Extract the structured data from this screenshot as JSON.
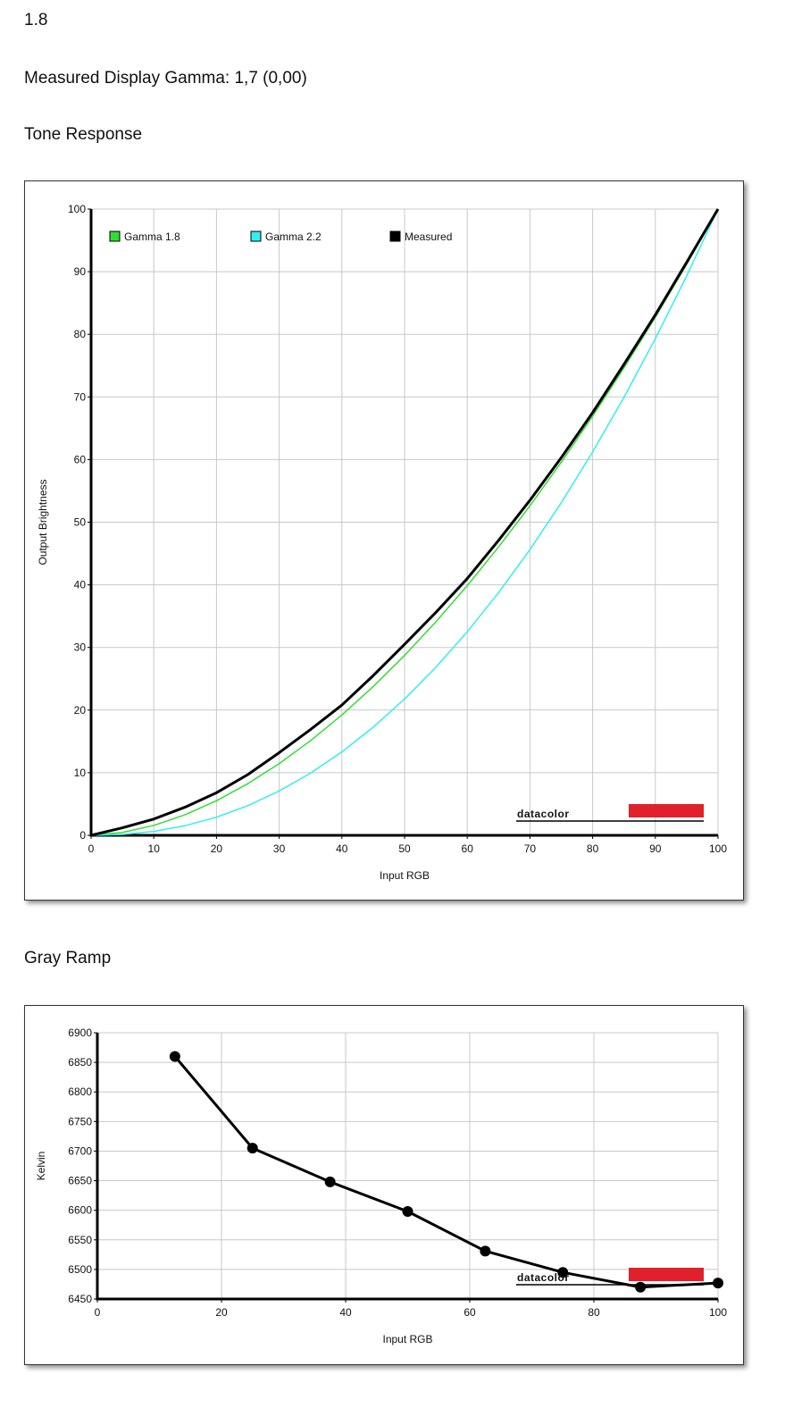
{
  "header": {
    "value": "1.8",
    "summary": "Measured Display Gamma: 1,7 (0,00)"
  },
  "sections": [
    "Tone Response",
    "Gray Ramp"
  ],
  "chart_data": [
    {
      "type": "line",
      "x_label": "Input RGB",
      "y_label": "Output Brightness",
      "watermark": "datacolor",
      "x": [
        0,
        5,
        10,
        15,
        20,
        25,
        30,
        35,
        40,
        45,
        50,
        55,
        60,
        65,
        70,
        75,
        80,
        85,
        90,
        95,
        100
      ],
      "series": [
        {
          "name": "Gamma 1.8",
          "color": "#33dd33",
          "width": 1.5,
          "values": [
            0,
            0.46,
            1.58,
            3.29,
            5.52,
            8.25,
            11.45,
            15.11,
            19.22,
            23.76,
            28.72,
            34.09,
            39.87,
            46.05,
            52.62,
            59.58,
            66.92,
            74.64,
            82.72,
            91.18,
            100
          ]
        },
        {
          "name": "Gamma 2.2",
          "color": "#33eeee",
          "width": 1.5,
          "values": [
            0,
            0.14,
            0.63,
            1.54,
            2.9,
            4.74,
            7.08,
            9.93,
            13.32,
            17.26,
            21.76,
            26.84,
            32.5,
            38.76,
            45.62,
            53.11,
            61.21,
            69.94,
            79.31,
            89.32,
            100
          ]
        },
        {
          "name": "Measured",
          "color": "#000000",
          "width": 3,
          "values": [
            0,
            1.2,
            2.6,
            4.5,
            6.8,
            9.7,
            13.2,
            16.9,
            20.8,
            25.5,
            30.5,
            35.6,
            41,
            47.1,
            53.5,
            60.3,
            67.5,
            75.2,
            83.1,
            91.5,
            100
          ]
        }
      ],
      "xlim": [
        0,
        100
      ],
      "xticks": [
        0,
        10,
        20,
        30,
        40,
        50,
        60,
        70,
        80,
        90,
        100
      ],
      "ylim": [
        0,
        100
      ],
      "yticks": [
        0,
        10,
        20,
        30,
        40,
        50,
        60,
        70,
        80,
        90,
        100
      ],
      "grid": true,
      "legend": "top-left"
    },
    {
      "type": "line",
      "x_label": "Input RGB",
      "y_label": "Kelvin",
      "watermark": "datacolor",
      "x": [
        12.5,
        25,
        37.5,
        50,
        62.5,
        75,
        87.5,
        100
      ],
      "values": [
        6860,
        6705,
        6648,
        6598,
        6531,
        6495,
        6470,
        6477
      ],
      "color": "#000000",
      "width": 3,
      "markers": true,
      "xlim": [
        0,
        100
      ],
      "xticks": [
        0,
        20,
        40,
        60,
        80,
        100
      ],
      "ylim": [
        6450,
        6900
      ],
      "yticks": [
        6450,
        6500,
        6550,
        6600,
        6650,
        6700,
        6750,
        6800,
        6850,
        6900
      ],
      "grid": true
    }
  ]
}
